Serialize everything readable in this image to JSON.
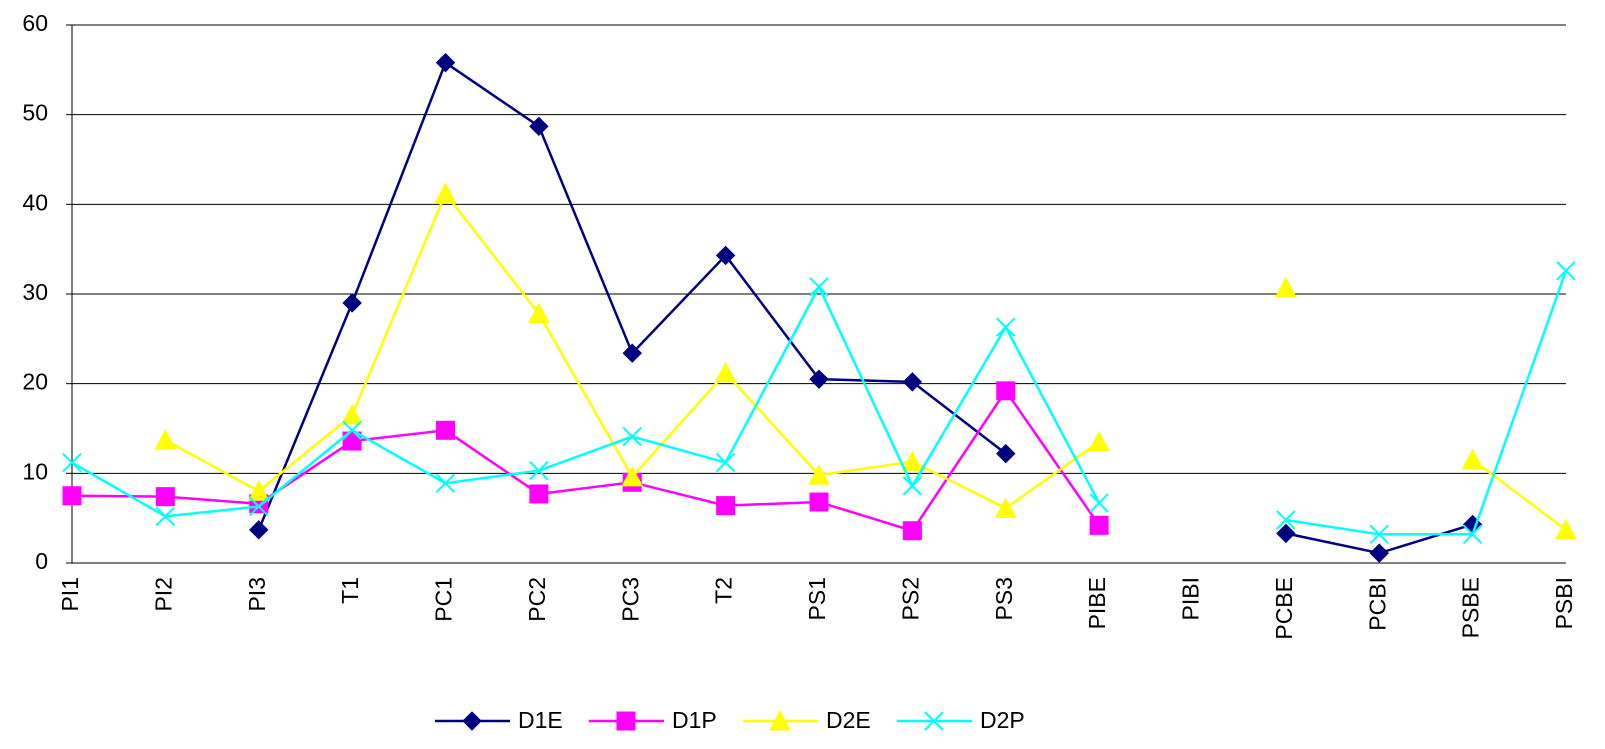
{
  "chart_data": {
    "type": "line",
    "categories": [
      "PI1",
      "PI2",
      "PI3",
      "T1",
      "PC1",
      "PC2",
      "PC3",
      "T2",
      "PS1",
      "PS2",
      "PS3",
      "PIBE",
      "PIBI",
      "PCBE",
      "PCBI",
      "PSBE",
      "PSBI"
    ],
    "series": [
      {
        "name": "D1E",
        "color": "#000080",
        "marker": "diamond",
        "values": [
          null,
          null,
          3.7,
          29,
          55.8,
          48.7,
          23.4,
          34.3,
          20.5,
          20.2,
          12.2,
          null,
          null,
          3.3,
          1.1,
          4.3,
          null
        ]
      },
      {
        "name": "D1P",
        "color": "#ff00ff",
        "marker": "square",
        "values": [
          7.5,
          7.4,
          6.6,
          13.6,
          14.8,
          7.7,
          9.0,
          6.4,
          6.8,
          3.6,
          19.2,
          4.2,
          null,
          null,
          null,
          null,
          null
        ]
      },
      {
        "name": "D2E",
        "color": "#ffff00",
        "marker": "triangle",
        "values": [
          null,
          13.7,
          8.0,
          16.5,
          41.2,
          27.8,
          9.6,
          21.2,
          9.8,
          11.3,
          6.1,
          13.5,
          null,
          30.7,
          null,
          11.5,
          3.7
        ]
      },
      {
        "name": "D2P",
        "color": "#00ffff",
        "marker": "x",
        "values": [
          11.2,
          5.2,
          6.3,
          14.8,
          8.9,
          10.3,
          14.1,
          11.2,
          30.8,
          8.6,
          26.3,
          6.7,
          null,
          4.8,
          3.2,
          3.2,
          32.6
        ]
      }
    ],
    "ylim": [
      0,
      60
    ],
    "yticks": [
      0,
      10,
      20,
      30,
      40,
      50,
      60
    ],
    "grid": true,
    "legend": "bottom"
  }
}
